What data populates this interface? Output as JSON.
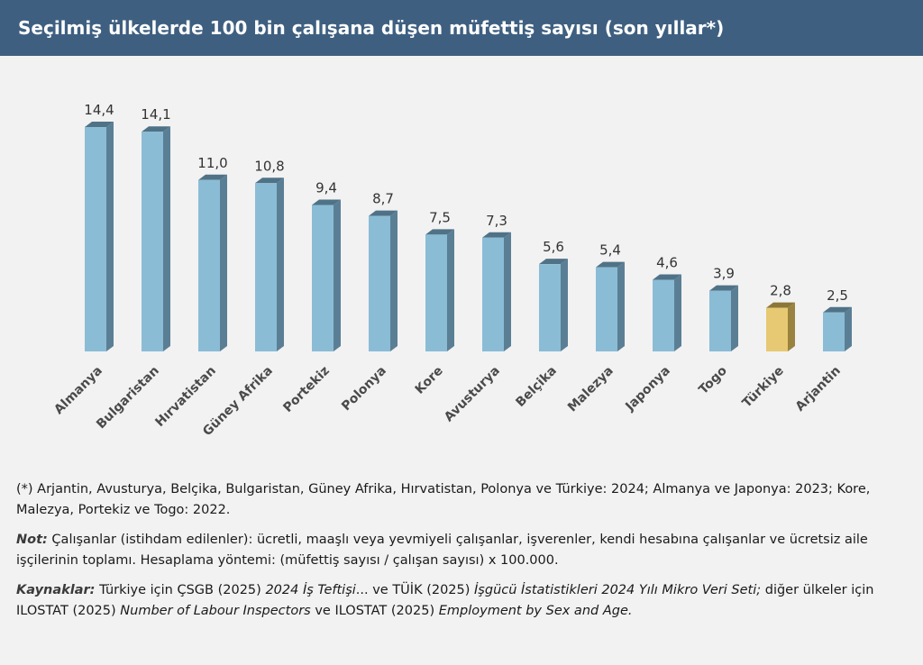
{
  "chart_data": {
    "type": "bar",
    "title": "Seçilmiş ülkelerde 100 bin çalışana düşen müfettiş sayısı (son yıllar*)",
    "categories": [
      "Almanya",
      "Bulgaristan",
      "Hırvatistan",
      "Güney Afrika",
      "Portekiz",
      "Polonya",
      "Kore",
      "Avusturya",
      "Belçika",
      "Malezya",
      "Japonya",
      "Togo",
      "Türkiye",
      "Arjantin"
    ],
    "values": [
      14.4,
      14.1,
      11.0,
      10.8,
      9.4,
      8.7,
      7.5,
      7.3,
      5.6,
      5.4,
      4.6,
      3.9,
      2.8,
      2.5
    ],
    "value_labels": [
      "14,4",
      "14,1",
      "11,0",
      "10,8",
      "9,4",
      "8,7",
      "7,5",
      "7,3",
      "5,6",
      "5,4",
      "4,6",
      "3,9",
      "2,8",
      "2,5"
    ],
    "highlight": "Türkiye",
    "ylim": [
      0,
      15.5
    ],
    "grid": false,
    "colors": {
      "bar_front": "#8bbcd6",
      "bar_side": "#5a7f95",
      "bar_top": "#4f7287",
      "highlight_front": "#e6c972",
      "highlight_side": "#9a8240",
      "highlight_top": "#8c7638",
      "header_bg": "#3e5f80"
    }
  },
  "notes": {
    "footnote": "(*) Arjantin, Avusturya, Belçika, Bulgaristan, Güney Afrika, Hırvatistan, Polonya ve Türkiye: 2024; Almanya ve Japonya: 2023; Kore, Malezya, Portekiz ve Togo: 2022.",
    "note_label": "Not:",
    "note_text": " Çalışanlar (istihdam edilenler): ücretli, maaşlı veya yevmiyeli çalışanlar, işverenler, kendi hesabına çalışanlar ve ücretsiz aile işçilerinin toplamı. Hesaplama yöntemi: (müfettiş sayısı / çalışan sayısı) x 100.000.",
    "sources_label": "Kaynaklar:",
    "src_part1": " Türkiye için ÇSGB (2025) ",
    "src_title1": "2024 İş Teftişi",
    "src_part2": "... ve TÜİK (2025) ",
    "src_title2": "İşgücü İstatistikleri 2024 Yılı Mikro Veri Seti;",
    "src_part3": " diğer ülkeler için ILOSTAT (2025) ",
    "src_title3": "Number of Labour Inspectors",
    "src_part4": " ve ILOSTAT (2025) ",
    "src_title4": "Employment by Sex and Age."
  }
}
